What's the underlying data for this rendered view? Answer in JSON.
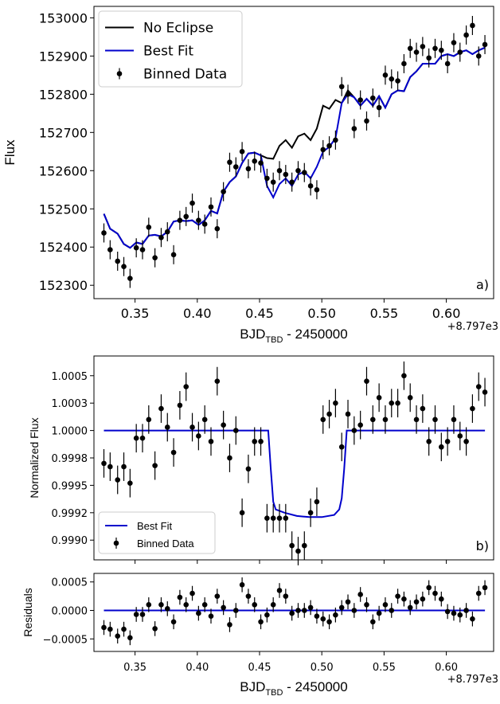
{
  "chart_data": [
    {
      "type": "scatter",
      "panel": "a",
      "panel_label": "a)",
      "xlabel": "BJD",
      "xlabel_sub": "TBD",
      "xlabel_tail": " - 2450000",
      "ylabel": "Flux",
      "offset_text": "+8.797e3",
      "xlim": [
        0.317,
        0.638
      ],
      "ylim": [
        152265,
        153030
      ],
      "xticks": [
        0.35,
        0.4,
        0.45,
        0.5,
        0.55,
        0.6
      ],
      "xtick_labels": [
        "0.35",
        "0.40",
        "0.45",
        "0.50",
        "0.55",
        "0.60"
      ],
      "yticks": [
        152300,
        152400,
        152500,
        152600,
        152700,
        152800,
        152900,
        153000
      ],
      "ytick_labels": [
        "152300",
        "152400",
        "152500",
        "152600",
        "152700",
        "152800",
        "152900",
        "153000"
      ],
      "legend": {
        "location": "upper left",
        "entries": [
          "No Eclipse",
          "Best Fit",
          "Binned Data"
        ]
      },
      "series": [
        {
          "name": "No Eclipse",
          "kind": "line",
          "color": "#000000",
          "x": [
            0.325,
            0.33,
            0.336,
            0.341,
            0.346,
            0.351,
            0.356,
            0.361,
            0.366,
            0.371,
            0.376,
            0.381,
            0.386,
            0.391,
            0.396,
            0.401,
            0.406,
            0.411,
            0.416,
            0.421,
            0.426,
            0.431,
            0.436,
            0.441,
            0.446,
            0.451,
            0.456,
            0.461,
            0.466,
            0.471,
            0.476,
            0.481,
            0.486,
            0.491,
            0.496,
            0.501,
            0.506,
            0.511,
            0.516,
            0.521,
            0.526,
            0.531,
            0.536,
            0.541,
            0.546,
            0.551,
            0.556,
            0.561,
            0.566,
            0.571,
            0.576,
            0.581,
            0.586,
            0.591,
            0.596,
            0.601,
            0.606,
            0.611,
            0.616,
            0.621,
            0.626,
            0.631
          ],
          "y": [
            152487,
            152448,
            152435,
            152408,
            152398,
            152412,
            152408,
            152430,
            152432,
            152428,
            152440,
            152467,
            152470,
            152468,
            152470,
            152458,
            152470,
            152495,
            152488,
            152545,
            152570,
            152585,
            152620,
            152645,
            152647,
            152640,
            152633,
            152631,
            152665,
            152680,
            152660,
            152690,
            152697,
            152680,
            152710,
            152770,
            152762,
            152785,
            152777,
            152810,
            152792,
            152770,
            152788,
            152770,
            152795,
            152765,
            152800,
            152810,
            152808,
            152845,
            152860,
            152880,
            152880,
            152880,
            152900,
            152905,
            152900,
            152910,
            152915,
            152905,
            152915,
            152922
          ]
        },
        {
          "name": "Best Fit",
          "kind": "line",
          "color": "#0000cc",
          "x": [
            0.325,
            0.33,
            0.336,
            0.341,
            0.346,
            0.351,
            0.356,
            0.361,
            0.366,
            0.371,
            0.376,
            0.381,
            0.386,
            0.391,
            0.396,
            0.401,
            0.406,
            0.411,
            0.416,
            0.421,
            0.426,
            0.431,
            0.436,
            0.441,
            0.446,
            0.451,
            0.456,
            0.461,
            0.466,
            0.471,
            0.476,
            0.481,
            0.486,
            0.491,
            0.496,
            0.501,
            0.506,
            0.511,
            0.516,
            0.521,
            0.526,
            0.531,
            0.536,
            0.541,
            0.546,
            0.551,
            0.556,
            0.561,
            0.566,
            0.571,
            0.576,
            0.581,
            0.586,
            0.591,
            0.596,
            0.601,
            0.606,
            0.611,
            0.616,
            0.621,
            0.626,
            0.631
          ],
          "y": [
            152487,
            152448,
            152435,
            152408,
            152398,
            152412,
            152408,
            152430,
            152432,
            152428,
            152440,
            152467,
            152470,
            152468,
            152470,
            152458,
            152470,
            152495,
            152488,
            152545,
            152570,
            152585,
            152620,
            152645,
            152647,
            152640,
            152560,
            152530,
            152565,
            152580,
            152560,
            152590,
            152597,
            152580,
            152610,
            152650,
            152662,
            152685,
            152777,
            152800,
            152792,
            152770,
            152788,
            152770,
            152795,
            152765,
            152800,
            152810,
            152808,
            152845,
            152860,
            152880,
            152880,
            152880,
            152900,
            152905,
            152900,
            152910,
            152915,
            152905,
            152915,
            152922
          ]
        },
        {
          "name": "Binned Data",
          "kind": "errorbar",
          "color": "#000000",
          "x": [
            0.325,
            0.33,
            0.336,
            0.341,
            0.346,
            0.351,
            0.356,
            0.361,
            0.366,
            0.371,
            0.376,
            0.381,
            0.386,
            0.391,
            0.396,
            0.401,
            0.406,
            0.411,
            0.416,
            0.421,
            0.426,
            0.431,
            0.436,
            0.441,
            0.446,
            0.451,
            0.456,
            0.461,
            0.466,
            0.471,
            0.476,
            0.481,
            0.486,
            0.491,
            0.496,
            0.501,
            0.506,
            0.511,
            0.516,
            0.521,
            0.526,
            0.531,
            0.536,
            0.541,
            0.546,
            0.551,
            0.556,
            0.561,
            0.566,
            0.571,
            0.576,
            0.581,
            0.586,
            0.591,
            0.596,
            0.601,
            0.606,
            0.611,
            0.616,
            0.621,
            0.626,
            0.631
          ],
          "y": [
            152437,
            152393,
            152363,
            152349,
            152318,
            152398,
            152393,
            152452,
            152372,
            152425,
            152440,
            152380,
            152470,
            152480,
            152515,
            152470,
            152460,
            152505,
            152448,
            152545,
            152622,
            152610,
            152650,
            152605,
            152625,
            152620,
            152580,
            152570,
            152600,
            152590,
            152570,
            152600,
            152595,
            152560,
            152550,
            152655,
            152665,
            152680,
            152820,
            152800,
            152710,
            152785,
            152730,
            152790,
            152765,
            152850,
            152840,
            152835,
            152880,
            152920,
            152910,
            152925,
            152895,
            152920,
            152915,
            152880,
            152935,
            152910,
            152955,
            152980,
            152900,
            152930
          ],
          "err": 25
        }
      ]
    },
    {
      "type": "scatter",
      "panel": "b",
      "panel_label": "b)",
      "ylabel": "Normalized Flux",
      "xlim": [
        0.317,
        0.638
      ],
      "ylim": [
        0.99882,
        1.00068
      ],
      "xticks": [
        0.35,
        0.4,
        0.45,
        0.5,
        0.55,
        0.6
      ],
      "yticks": [
        0.999,
        0.99925,
        0.9995,
        0.99975,
        1.0,
        1.00025,
        1.0005
      ],
      "ytick_labels": [
        "0.9990",
        "0.9992",
        "0.9995",
        "0.9998",
        "1.0000",
        "1.0003",
        "1.0005"
      ],
      "legend": {
        "location": "lower left",
        "entries": [
          "Best Fit",
          "Binned Data"
        ]
      },
      "series": [
        {
          "name": "Best Fit",
          "kind": "line",
          "color": "#0000cc",
          "x": [
            0.325,
            0.457,
            0.459,
            0.461,
            0.463,
            0.47,
            0.48,
            0.49,
            0.5,
            0.51,
            0.514,
            0.516,
            0.518,
            0.52,
            0.631
          ],
          "y": [
            1.0,
            1.0,
            0.99965,
            0.99935,
            0.99928,
            0.99925,
            0.99922,
            0.99921,
            0.99921,
            0.99923,
            0.99928,
            0.99938,
            0.99965,
            1.0,
            1.0
          ]
        },
        {
          "name": "Binned Data",
          "kind": "errorbar",
          "color": "#000000",
          "x": [
            0.325,
            0.33,
            0.336,
            0.341,
            0.346,
            0.351,
            0.356,
            0.361,
            0.366,
            0.371,
            0.376,
            0.381,
            0.386,
            0.391,
            0.396,
            0.401,
            0.406,
            0.411,
            0.416,
            0.421,
            0.426,
            0.431,
            0.436,
            0.441,
            0.446,
            0.451,
            0.456,
            0.461,
            0.466,
            0.471,
            0.476,
            0.481,
            0.486,
            0.491,
            0.496,
            0.501,
            0.506,
            0.511,
            0.516,
            0.521,
            0.526,
            0.531,
            0.536,
            0.541,
            0.546,
            0.551,
            0.556,
            0.561,
            0.566,
            0.571,
            0.576,
            0.581,
            0.586,
            0.591,
            0.596,
            0.601,
            0.606,
            0.611,
            0.616,
            0.621,
            0.626,
            0.631
          ],
          "y": [
            0.9997,
            0.99967,
            0.99955,
            0.99967,
            0.99952,
            0.99993,
            0.99993,
            1.0001,
            0.99968,
            1.0002,
            1.00003,
            0.9998,
            1.00023,
            1.0004,
            1.00003,
            0.99995,
            1.0001,
            0.9999,
            1.00045,
            1.00005,
            0.99975,
            1.0,
            0.99925,
            0.99965,
            0.9999,
            0.9999,
            0.9992,
            0.9992,
            0.9992,
            0.9992,
            0.99895,
            0.9989,
            0.99895,
            0.99925,
            0.99935,
            1.0001,
            1.00015,
            1.00025,
            0.99985,
            1.00015,
            1.0,
            1.00005,
            1.00045,
            1.0001,
            1.0003,
            1.0001,
            1.00025,
            1.00025,
            1.0005,
            1.0003,
            1.0001,
            1.0002,
            0.9999,
            1.0001,
            0.99985,
            0.9999,
            1.0001,
            0.99995,
            0.9999,
            1.0002,
            1.0004,
            1.00035
          ],
          "err": 0.00013
        }
      ]
    },
    {
      "type": "scatter",
      "panel": "c",
      "ylabel": "Residuals",
      "xlabel": "BJD",
      "xlabel_sub": "TBD",
      "xlabel_tail": " - 2450000",
      "offset_text": "+8.797e3",
      "xlim": [
        0.317,
        0.638
      ],
      "ylim": [
        -0.00072,
        0.00065
      ],
      "xticks": [
        0.35,
        0.4,
        0.45,
        0.5,
        0.55,
        0.6
      ],
      "xtick_labels": [
        "0.35",
        "0.40",
        "0.45",
        "0.50",
        "0.55",
        "0.60"
      ],
      "yticks": [
        -0.0005,
        0.0,
        0.0005
      ],
      "ytick_labels": [
        "−0.0005",
        "0.0000",
        "0.0005"
      ],
      "series": [
        {
          "name": "Best Fit",
          "kind": "line",
          "color": "#0000cc",
          "x": [
            0.325,
            0.631
          ],
          "y": [
            0,
            0
          ]
        },
        {
          "name": "Binned Data",
          "kind": "errorbar",
          "color": "#000000",
          "x": [
            0.325,
            0.33,
            0.336,
            0.341,
            0.346,
            0.351,
            0.356,
            0.361,
            0.366,
            0.371,
            0.376,
            0.381,
            0.386,
            0.391,
            0.396,
            0.401,
            0.406,
            0.411,
            0.416,
            0.421,
            0.426,
            0.431,
            0.436,
            0.441,
            0.446,
            0.451,
            0.456,
            0.461,
            0.466,
            0.471,
            0.476,
            0.481,
            0.486,
            0.491,
            0.496,
            0.501,
            0.506,
            0.511,
            0.516,
            0.521,
            0.526,
            0.531,
            0.536,
            0.541,
            0.546,
            0.551,
            0.556,
            0.561,
            0.566,
            0.571,
            0.576,
            0.581,
            0.586,
            0.591,
            0.596,
            0.601,
            0.606,
            0.611,
            0.616,
            0.621,
            0.626,
            0.631
          ],
          "y": [
            -0.0003,
            -0.00033,
            -0.00045,
            -0.00033,
            -0.00048,
            -7e-05,
            -7e-05,
            0.0001,
            -0.00032,
            0.0001,
            3e-05,
            -0.0002,
            0.00023,
            0.0001,
            0.0003,
            -5e-05,
            0.0001,
            -0.0001,
            0.00025,
            5e-05,
            -0.00025,
            0.0,
            0.00045,
            0.00025,
            0.0001,
            -0.0002,
            -8e-05,
            0.0001,
            0.00035,
            0.00025,
            -5e-05,
            0.0,
            0.0,
            5e-05,
            -0.0001,
            -0.00015,
            -0.0002,
            -8e-05,
            5e-05,
            0.00015,
            0.0,
            0.00028,
            0.0001,
            -0.0002,
            -5e-05,
            0.0001,
            0.0,
            0.00025,
            0.0002,
            5e-05,
            0.00015,
            0.0002,
            0.0004,
            0.0003,
            0.0002,
            -2e-05,
            -5e-05,
            -8e-05,
            0.0,
            -0.00015,
            0.0003,
            0.0004
          ],
          "err": 0.00013
        }
      ]
    }
  ]
}
